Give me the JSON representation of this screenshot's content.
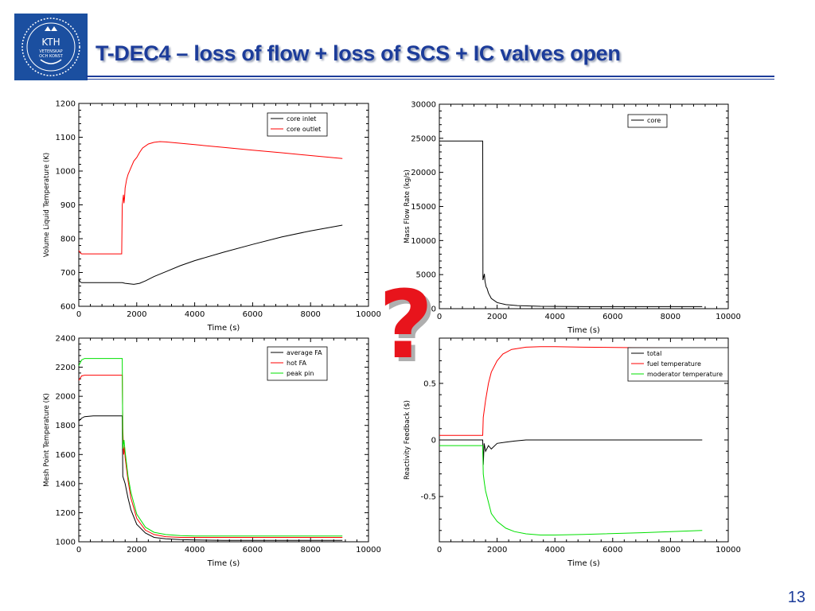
{
  "slide": {
    "title": "T-DEC4 – loss of flow + loss of SCS + IC valves open",
    "number": "13",
    "logo_text": [
      "KTH",
      "VETENSKAP",
      "OCH KONST"
    ],
    "question_mark": "?"
  },
  "colors": {
    "title": "#1c3c9a",
    "logo": "#1b4fa0",
    "question": "#e8141c",
    "black": "#000000",
    "red": "#ff0000",
    "green": "#00e000"
  },
  "chart_data": [
    {
      "type": "line",
      "xlabel": "Time (s)",
      "ylabel": "Volume Liquid Temperature (K)",
      "xlim": [
        0,
        10000
      ],
      "ylim": [
        600,
        1200
      ],
      "xticks": [
        0,
        2000,
        4000,
        6000,
        8000,
        10000
      ],
      "yticks": [
        600,
        700,
        800,
        900,
        1000,
        1100,
        1200
      ],
      "legend_position": "top-right",
      "series": [
        {
          "name": "core inlet",
          "color": "#000000",
          "x": [
            0,
            50,
            100,
            500,
            1500,
            1600,
            1900,
            2100,
            2300,
            2600,
            3000,
            3500,
            4000,
            5000,
            6000,
            7000,
            8000,
            9100
          ],
          "y": [
            680,
            672,
            670,
            670,
            670,
            668,
            665,
            668,
            675,
            688,
            702,
            720,
            735,
            760,
            783,
            805,
            823,
            840
          ]
        },
        {
          "name": "core outlet",
          "color": "#ff0000",
          "x": [
            0,
            60,
            100,
            500,
            1480,
            1500,
            1540,
            1560,
            1580,
            1600,
            1650,
            1700,
            1800,
            1900,
            2000,
            2100,
            2200,
            2400,
            2600,
            2800,
            3000,
            4000,
            5000,
            6000,
            7000,
            8000,
            9100
          ],
          "y": [
            765,
            757,
            755,
            755,
            755,
            900,
            930,
            905,
            920,
            950,
            975,
            990,
            1010,
            1030,
            1040,
            1055,
            1068,
            1080,
            1085,
            1087,
            1086,
            1078,
            1070,
            1062,
            1054,
            1046,
            1037
          ]
        }
      ]
    },
    {
      "type": "line",
      "xlabel": "Time (s)",
      "ylabel": "Mass Flow Rate (kg/s)",
      "xlim": [
        0,
        10000
      ],
      "ylim": [
        0,
        30000
      ],
      "xticks": [
        0,
        2000,
        4000,
        6000,
        8000,
        10000
      ],
      "yticks": [
        0,
        5000,
        10000,
        15000,
        20000,
        25000,
        30000
      ],
      "legend_position": "top-right",
      "series": [
        {
          "name": "core",
          "color": "#000000",
          "x": [
            0,
            1500,
            1510,
            1560,
            1580,
            1620,
            1650,
            1700,
            1800,
            2000,
            2300,
            2700,
            3500,
            5000,
            7000,
            9100
          ],
          "y": [
            24600,
            24600,
            4200,
            5100,
            4000,
            3200,
            3000,
            2300,
            1500,
            900,
            600,
            450,
            350,
            300,
            300,
            300
          ]
        }
      ]
    },
    {
      "type": "line",
      "xlabel": "Time (s)",
      "ylabel": "Mesh Point Temperature (K)",
      "xlim": [
        0,
        10000
      ],
      "ylim": [
        1000,
        2400
      ],
      "xticks": [
        0,
        2000,
        4000,
        6000,
        8000,
        10000
      ],
      "yticks": [
        1000,
        1200,
        1400,
        1600,
        1800,
        2000,
        2200,
        2400
      ],
      "legend_position": "top-right",
      "series": [
        {
          "name": "average FA",
          "color": "#000000",
          "x": [
            0,
            100,
            200,
            500,
            1500,
            1520,
            1600,
            1700,
            1800,
            2000,
            2300,
            2600,
            3000,
            3500,
            4000,
            5000,
            7000,
            9100
          ],
          "y": [
            1830,
            1850,
            1860,
            1865,
            1865,
            1450,
            1400,
            1300,
            1220,
            1120,
            1060,
            1030,
            1020,
            1015,
            1012,
            1010,
            1010,
            1010
          ]
        },
        {
          "name": "hot FA",
          "color": "#ff0000",
          "x": [
            0,
            100,
            200,
            500,
            1500,
            1520,
            1550,
            1580,
            1600,
            1700,
            1800,
            2000,
            2300,
            2600,
            3000,
            3500,
            4000,
            5000,
            7000,
            9100
          ],
          "y": [
            2110,
            2140,
            2145,
            2145,
            2145,
            1780,
            1600,
            1650,
            1580,
            1420,
            1300,
            1160,
            1080,
            1050,
            1035,
            1030,
            1030,
            1030,
            1030,
            1030
          ]
        },
        {
          "name": "peak pin",
          "color": "#00e000",
          "x": [
            0,
            100,
            200,
            500,
            1500,
            1520,
            1560,
            1600,
            1700,
            1800,
            2000,
            2300,
            2600,
            3000,
            3500,
            4000,
            5000,
            7000,
            9100
          ],
          "y": [
            2210,
            2250,
            2260,
            2260,
            2260,
            1640,
            1700,
            1620,
            1450,
            1340,
            1190,
            1100,
            1065,
            1050,
            1042,
            1040,
            1040,
            1040,
            1040
          ]
        }
      ]
    },
    {
      "type": "line",
      "xlabel": "Time (s)",
      "ylabel": "Reactivity Feedback ($)",
      "xlim": [
        0,
        10000
      ],
      "ylim": [
        -0.9,
        0.9
      ],
      "xticks": [
        0,
        2000,
        4000,
        6000,
        8000,
        10000
      ],
      "yticks": [
        -0.5,
        0,
        0.5
      ],
      "legend_position": "top-right",
      "series": [
        {
          "name": "total",
          "color": "#000000",
          "x": [
            0,
            1500,
            1520,
            1550,
            1600,
            1700,
            1800,
            2000,
            2300,
            2600,
            3000,
            3500,
            5000,
            7000,
            9100
          ],
          "y": [
            0,
            0,
            -0.22,
            -0.03,
            -0.1,
            -0.05,
            -0.08,
            -0.03,
            -0.02,
            -0.01,
            0,
            0,
            0,
            0,
            0
          ]
        },
        {
          "name": "fuel temperature",
          "color": "#ff0000",
          "x": [
            0,
            1500,
            1520,
            1600,
            1700,
            1800,
            2000,
            2200,
            2500,
            3000,
            3500,
            4000,
            5000,
            7000,
            9100
          ],
          "y": [
            0.04,
            0.04,
            0.2,
            0.35,
            0.5,
            0.6,
            0.7,
            0.76,
            0.8,
            0.82,
            0.825,
            0.825,
            0.82,
            0.815,
            0.81
          ]
        },
        {
          "name": "moderator temperature",
          "color": "#00e000",
          "x": [
            0,
            1500,
            1520,
            1560,
            1600,
            1700,
            1800,
            2000,
            2300,
            2600,
            3000,
            3500,
            4000,
            5000,
            7000,
            9100
          ],
          "y": [
            -0.05,
            -0.05,
            -0.3,
            -0.38,
            -0.45,
            -0.55,
            -0.65,
            -0.72,
            -0.78,
            -0.81,
            -0.83,
            -0.84,
            -0.84,
            -0.835,
            -0.82,
            -0.8
          ]
        }
      ]
    }
  ]
}
